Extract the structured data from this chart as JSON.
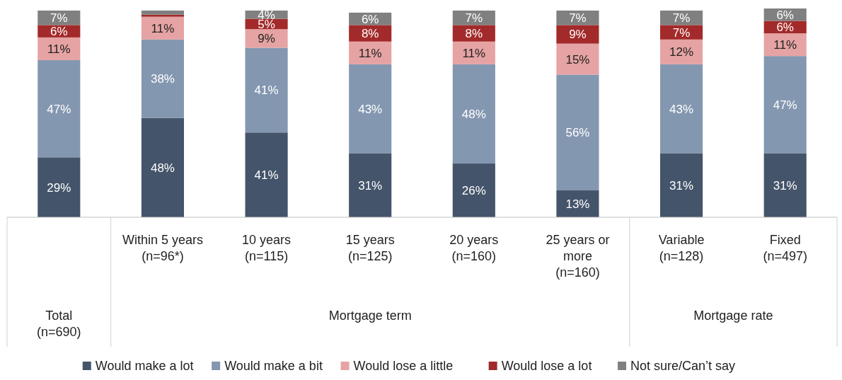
{
  "chart_data": {
    "type": "bar",
    "stacked": true,
    "legend": "bottom",
    "categories": [
      null,
      "Within 5 years\n(n=96*)",
      "10 years\n(n=115)",
      "15 years\n(n=125)",
      "20 years\n(n=160)",
      "25 years or\nmore\n(n=160)",
      "Variable\n(n=128)",
      "Fixed\n(n=497)"
    ],
    "annotations": [
      "Total\n(n=690)",
      "Mortgage term",
      "Mortgage rate"
    ],
    "series": [
      {
        "name": "Would make a lot",
        "color": "#44546a",
        "values": [
          29,
          48,
          41,
          31,
          26,
          13,
          31,
          31
        ],
        "value_labels": [
          "29%",
          "48%",
          "41%",
          "31%",
          "26%",
          "13%",
          "31%",
          "31%"
        ]
      },
      {
        "name": "Would make a bit",
        "color": "#8497b0",
        "values": [
          47,
          38,
          41,
          43,
          48,
          56,
          43,
          47
        ],
        "value_labels": [
          "47%",
          "38%",
          "41%",
          "43%",
          "48%",
          "56%",
          "43%",
          "47%"
        ]
      },
      {
        "name": "Would lose a little",
        "color": "#e6a3a3",
        "values": [
          11,
          11,
          9,
          11,
          11,
          15,
          12,
          11
        ],
        "value_labels": [
          "11%",
          "11%",
          "9%",
          "11%",
          "11%",
          "15%",
          "12%",
          "11%"
        ]
      },
      {
        "name": "Would lose a lot",
        "color": "#a32a2a",
        "values": [
          6,
          1,
          5,
          8,
          8,
          9,
          7,
          6
        ],
        "value_labels": [
          "6%",
          null,
          "5%",
          "8%",
          "8%",
          "9%",
          "7%",
          "6%"
        ]
      },
      {
        "name": "Not sure/Can’t say",
        "color": "#808080",
        "values": [
          7,
          2,
          4,
          6,
          7,
          7,
          7,
          6
        ],
        "value_labels": [
          "7%",
          null,
          "4%",
          "6%",
          "7%",
          "7%",
          "7%",
          "6%"
        ]
      }
    ]
  }
}
